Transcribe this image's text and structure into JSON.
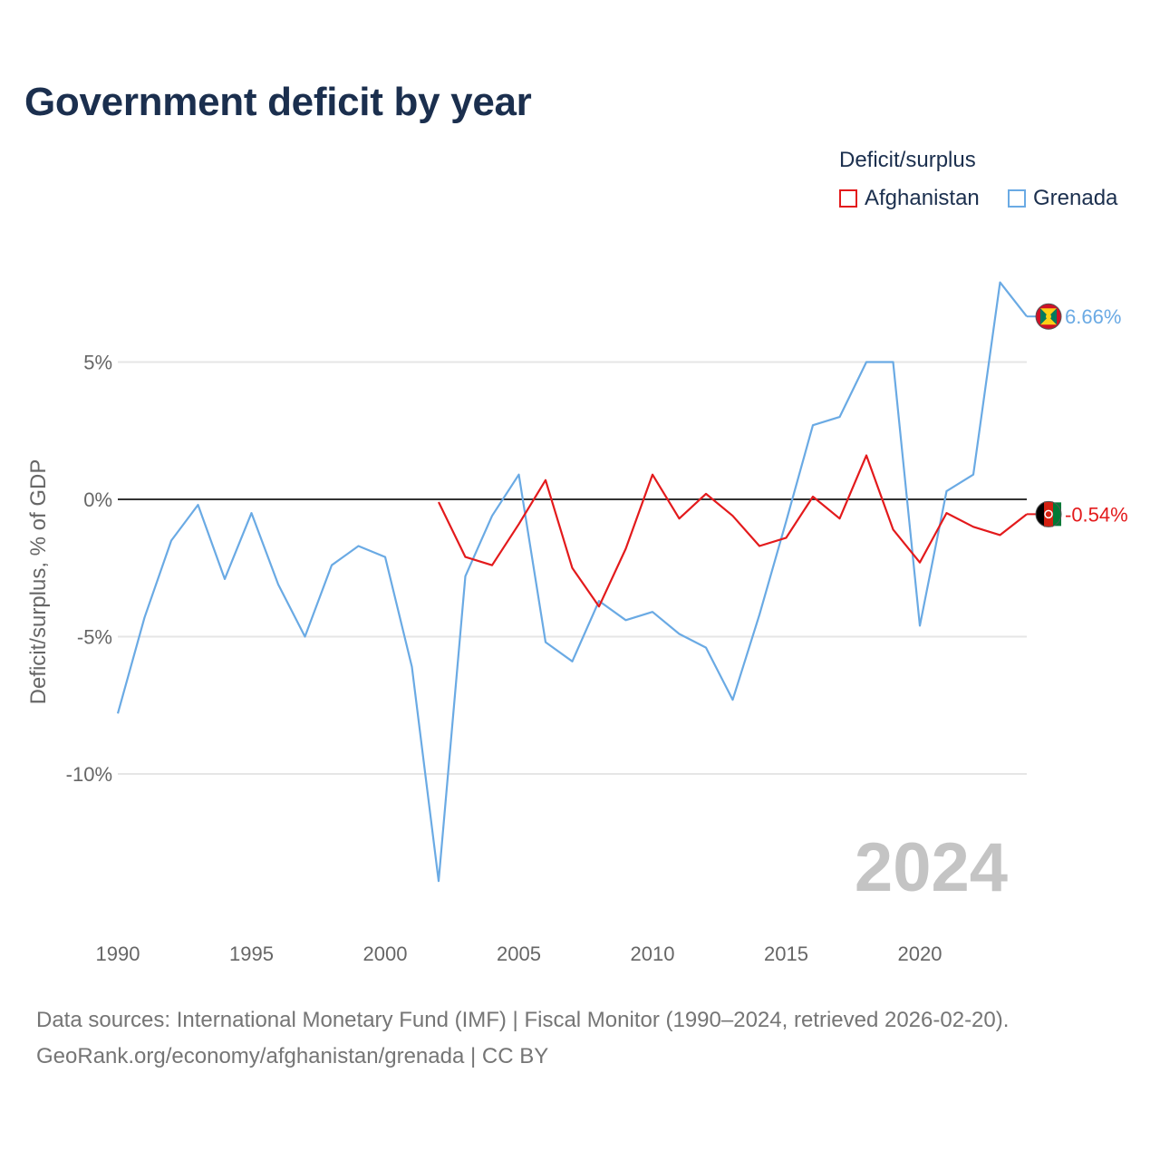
{
  "title": "Government deficit by year",
  "legend": {
    "title": "Deficit/surplus",
    "items": [
      {
        "label": "Afghanistan",
        "color": "#e31a1c"
      },
      {
        "label": "Grenada",
        "color": "#6aaae4"
      }
    ]
  },
  "footer": {
    "line1": "Data sources: International Monetary Fund (IMF) | Fiscal Monitor (1990–2024, retrieved 2026-02-20).",
    "line2": "GeoRank.org/economy/afghanistan/grenada | CC BY"
  },
  "year_watermark": "2024",
  "chart_data": {
    "type": "line",
    "title": "Government deficit by year",
    "xlabel": "",
    "ylabel": "Deficit/surplus, % of GDP",
    "xlim": [
      1990,
      2024
    ],
    "ylim": [
      -14.5,
      8.5
    ],
    "x_ticks": [
      1990,
      1995,
      2000,
      2005,
      2010,
      2015,
      2020
    ],
    "y_ticks": [
      5,
      0,
      -5,
      -10
    ],
    "y_tick_labels": [
      "5%",
      "0%",
      "-5%",
      "-10%"
    ],
    "zero_line": true,
    "series": [
      {
        "name": "Grenada",
        "color": "#6aaae4",
        "end_label": "6.66%",
        "icon": "grenada-flag-icon",
        "x": [
          1990,
          1991,
          1992,
          1993,
          1994,
          1995,
          1996,
          1997,
          1998,
          1999,
          2000,
          2001,
          2002,
          2003,
          2004,
          2005,
          2006,
          2007,
          2008,
          2009,
          2010,
          2011,
          2012,
          2013,
          2014,
          2015,
          2016,
          2017,
          2018,
          2019,
          2020,
          2021,
          2022,
          2023,
          2024
        ],
        "values": [
          -7.8,
          -4.3,
          -1.5,
          -0.2,
          -2.9,
          -0.5,
          -3.1,
          -5.0,
          -2.4,
          -1.7,
          -2.1,
          -6.1,
          -13.9,
          -2.8,
          -0.6,
          0.9,
          -5.2,
          -5.9,
          -3.7,
          -4.4,
          -4.1,
          -4.9,
          -5.4,
          -7.3,
          -4.2,
          -0.8,
          2.7,
          3.0,
          5.0,
          5.0,
          -4.6,
          0.3,
          0.9,
          7.9,
          6.66
        ]
      },
      {
        "name": "Afghanistan",
        "color": "#e31a1c",
        "end_label": "-0.54%",
        "icon": "afghanistan-flag-icon",
        "x": [
          2002,
          2003,
          2004,
          2005,
          2006,
          2007,
          2008,
          2009,
          2010,
          2011,
          2012,
          2013,
          2014,
          2015,
          2016,
          2017,
          2018,
          2019,
          2020,
          2021,
          2022,
          2023,
          2024
        ],
        "values": [
          -0.1,
          -2.1,
          -2.4,
          -0.9,
          0.7,
          -2.5,
          -3.9,
          -1.8,
          0.9,
          -0.7,
          0.2,
          -0.6,
          -1.7,
          -1.4,
          0.1,
          -0.7,
          1.6,
          -1.1,
          -2.3,
          -0.5,
          -1.0,
          -1.3,
          -0.54
        ]
      }
    ]
  }
}
